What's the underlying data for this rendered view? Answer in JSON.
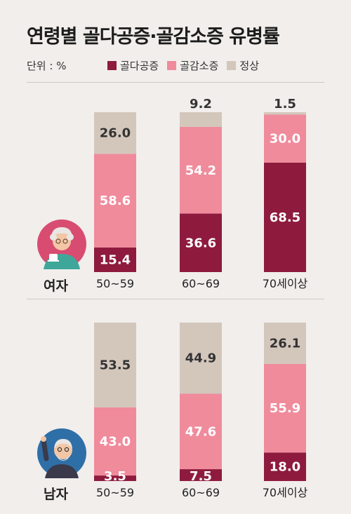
{
  "title": "연령별 골다공증·골감소증 유병률",
  "unit_label": "단위 : %",
  "legend": [
    {
      "label": "골다공증",
      "color": "#8e1b3e"
    },
    {
      "label": "골감소증",
      "color": "#f08b9c"
    },
    {
      "label": "정상",
      "color": "#d3c7bc"
    }
  ],
  "chart_data": [
    {
      "type": "bar",
      "stacked": true,
      "group_label": "여자",
      "categories": [
        "50~59",
        "60~69",
        "70세이상"
      ],
      "series": [
        {
          "name": "골다공증",
          "values": [
            15.4,
            36.6,
            68.5
          ]
        },
        {
          "name": "골감소증",
          "values": [
            58.6,
            54.2,
            30.0
          ]
        },
        {
          "name": "정상",
          "values": [
            26.0,
            9.2,
            1.5
          ]
        }
      ],
      "ylim": [
        0,
        100
      ]
    },
    {
      "type": "bar",
      "stacked": true,
      "group_label": "남자",
      "categories": [
        "50~59",
        "60~69",
        "70세이상"
      ],
      "series": [
        {
          "name": "골다공증",
          "values": [
            3.5,
            7.5,
            18.0
          ]
        },
        {
          "name": "골감소증",
          "values": [
            43.0,
            47.6,
            55.9
          ]
        },
        {
          "name": "정상",
          "values": [
            53.5,
            44.9,
            26.1
          ]
        }
      ],
      "ylim": [
        0,
        100
      ]
    }
  ],
  "icons": {
    "female": "elderly-woman-drinking-tea-icon",
    "male": "elderly-man-waving-icon"
  }
}
